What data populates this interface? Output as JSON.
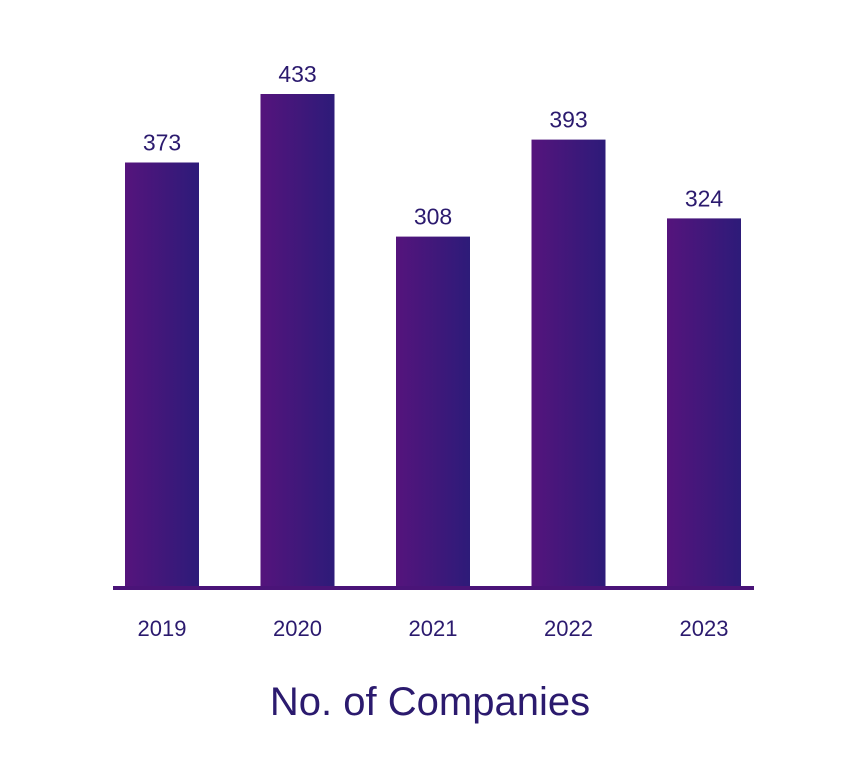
{
  "colors": {
    "bar_left": "#55147c",
    "bar_right": "#2d1b79",
    "axis": "#4a1478",
    "text": "#2b1a6e"
  },
  "chart_data": {
    "type": "bar",
    "title": "No. of Companies",
    "categories": [
      "2019",
      "2020",
      "2021",
      "2022",
      "2023"
    ],
    "values": [
      373,
      433,
      308,
      393,
      324
    ],
    "xlabel": "",
    "ylabel": "",
    "ylim": [
      0,
      433
    ],
    "grid": false,
    "legend": "none"
  }
}
